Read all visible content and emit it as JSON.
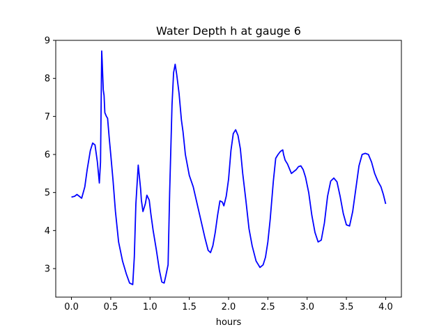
{
  "chart_data": {
    "type": "line",
    "title": "Water Depth h at gauge 6",
    "xlabel": "hours",
    "ylabel": "",
    "xlim": [
      -0.2,
      4.2
    ],
    "ylim": [
      2.25,
      9.0
    ],
    "xticks": [
      0.0,
      0.5,
      1.0,
      1.5,
      2.0,
      2.5,
      3.0,
      3.5,
      4.0
    ],
    "xtick_labels": [
      "0.0",
      "0.5",
      "1.0",
      "1.5",
      "2.0",
      "2.5",
      "3.0",
      "3.5",
      "4.0"
    ],
    "yticks": [
      3,
      4,
      5,
      6,
      7,
      8,
      9
    ],
    "ytick_labels": [
      "3",
      "4",
      "5",
      "6",
      "7",
      "8",
      "9"
    ],
    "grid": false,
    "series": [
      {
        "color": "#0000ff",
        "x": [
          0.0,
          0.04,
          0.07,
          0.1,
          0.13,
          0.17,
          0.2,
          0.24,
          0.27,
          0.3,
          0.33,
          0.355,
          0.37,
          0.385,
          0.39,
          0.405,
          0.415,
          0.425,
          0.435,
          0.445,
          0.46,
          0.47,
          0.48,
          0.5,
          0.53,
          0.56,
          0.6,
          0.65,
          0.7,
          0.74,
          0.78,
          0.8,
          0.82,
          0.85,
          0.88,
          0.89,
          0.91,
          0.94,
          0.96,
          0.99,
          1.01,
          1.04,
          1.08,
          1.12,
          1.15,
          1.18,
          1.2,
          1.23,
          1.25,
          1.28,
          1.3,
          1.32,
          1.34,
          1.37,
          1.4,
          1.42,
          1.45,
          1.5,
          1.55,
          1.6,
          1.65,
          1.7,
          1.74,
          1.77,
          1.8,
          1.83,
          1.86,
          1.89,
          1.92,
          1.94,
          1.97,
          2.0,
          2.03,
          2.06,
          2.09,
          2.12,
          2.15,
          2.18,
          2.22,
          2.26,
          2.3,
          2.35,
          2.4,
          2.44,
          2.47,
          2.5,
          2.53,
          2.57,
          2.6,
          2.63,
          2.66,
          2.69,
          2.7,
          2.72,
          2.75,
          2.78,
          2.8,
          2.83,
          2.86,
          2.89,
          2.92,
          2.95,
          2.98,
          3.02,
          3.06,
          3.1,
          3.14,
          3.18,
          3.22,
          3.26,
          3.3,
          3.34,
          3.38,
          3.42,
          3.46,
          3.5,
          3.54,
          3.58,
          3.62,
          3.66,
          3.7,
          3.74,
          3.78,
          3.82,
          3.86,
          3.9,
          3.94,
          3.97,
          4.0
        ],
        "values": [
          4.88,
          4.9,
          4.95,
          4.9,
          4.85,
          5.15,
          5.6,
          6.1,
          6.3,
          6.25,
          5.8,
          5.25,
          5.8,
          8.72,
          8.5,
          7.7,
          7.55,
          7.1,
          7.05,
          7.0,
          6.95,
          6.7,
          6.45,
          6.0,
          5.3,
          4.5,
          3.7,
          3.2,
          2.85,
          2.62,
          2.58,
          3.3,
          4.7,
          5.72,
          5.1,
          4.8,
          4.5,
          4.7,
          4.93,
          4.8,
          4.45,
          4.0,
          3.5,
          2.95,
          2.65,
          2.62,
          2.8,
          3.1,
          5.0,
          7.3,
          8.15,
          8.37,
          8.1,
          7.6,
          6.9,
          6.6,
          6.0,
          5.45,
          5.15,
          4.7,
          4.25,
          3.8,
          3.48,
          3.42,
          3.6,
          3.95,
          4.4,
          4.78,
          4.75,
          4.65,
          4.9,
          5.35,
          6.1,
          6.55,
          6.65,
          6.5,
          6.15,
          5.5,
          4.8,
          4.05,
          3.6,
          3.2,
          3.03,
          3.1,
          3.3,
          3.7,
          4.3,
          5.3,
          5.9,
          6.0,
          6.08,
          6.12,
          6.0,
          5.85,
          5.75,
          5.6,
          5.5,
          5.55,
          5.6,
          5.68,
          5.7,
          5.6,
          5.4,
          5.0,
          4.4,
          3.95,
          3.7,
          3.75,
          4.2,
          4.9,
          5.3,
          5.38,
          5.28,
          4.9,
          4.45,
          4.15,
          4.12,
          4.5,
          5.1,
          5.7,
          6.0,
          6.03,
          6.0,
          5.8,
          5.5,
          5.3,
          5.15,
          4.95,
          4.7
        ]
      }
    ]
  }
}
